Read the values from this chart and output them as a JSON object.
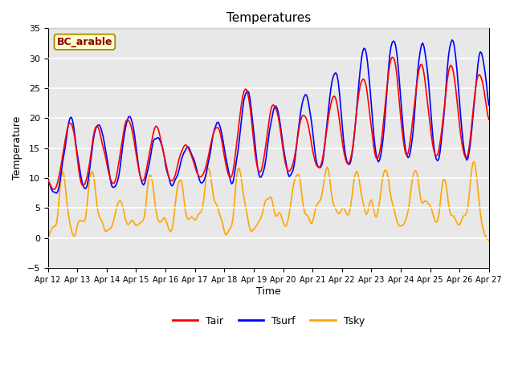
{
  "title": "Temperatures",
  "xlabel": "Time",
  "ylabel": "Temperature",
  "box_label": "BC_arable",
  "tair_color": "red",
  "tsurf_color": "blue",
  "tsky_color": "orange",
  "ylim": [
    -5,
    35
  ],
  "yticks": [
    -5,
    0,
    5,
    10,
    15,
    20,
    25,
    30,
    35
  ],
  "xtick_labels": [
    "Apr 12",
    "Apr 13",
    "Apr 14",
    "Apr 15",
    "Apr 16",
    "Apr 17",
    "Apr 18",
    "Apr 19",
    "Apr 20",
    "Apr 21",
    "Apr 22",
    "Apr 23",
    "Apr 24",
    "Apr 25",
    "Apr 26",
    "Apr 27"
  ],
  "bg_color": "#e8e8e8",
  "line_width": 1.2,
  "legend_fontsize": 9,
  "title_fontsize": 11,
  "tick_fontsize": 7,
  "ylabel_fontsize": 9,
  "xlabel_fontsize": 9
}
